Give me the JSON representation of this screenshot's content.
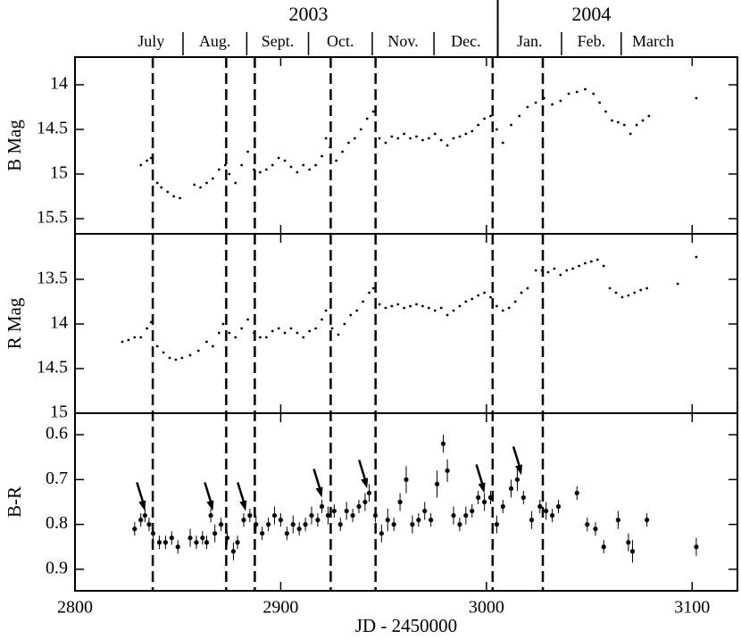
{
  "chart_data": [
    {
      "type": "scatter",
      "y_label": "B Mag",
      "xlim": [
        2800,
        3122
      ],
      "ylim": [
        15.67,
        13.69
      ],
      "yticks": [
        14,
        14.5,
        15,
        15.5
      ],
      "months": [
        "July",
        "Aug.",
        "Sept.",
        "Oct.",
        "Nov.",
        "Dec.",
        "Jan.",
        "Feb.",
        "March"
      ],
      "month_starts": [
        2821.5,
        2852.5,
        2883.5,
        2913.5,
        2944.5,
        2974.5,
        3005.5,
        3036.5,
        3065.5,
        3096.5
      ],
      "years": [
        "2003",
        "2004"
      ],
      "year_spans": [
        2821.5,
        3005.5,
        3096.5
      ],
      "vlines": [
        2837.8,
        2873.5,
        2887.4,
        2924.3,
        2946.1,
        3003.0,
        3027.4
      ],
      "x": [
        2832,
        2835,
        2837,
        2840,
        2842,
        2845,
        2848,
        2851,
        2858,
        2861,
        2864,
        2867,
        2870,
        2873,
        2875,
        2878,
        2881,
        2884,
        2887,
        2890,
        2893,
        2896,
        2899,
        2902,
        2905,
        2908,
        2911,
        2914,
        2917,
        2920,
        2922,
        2924,
        2927,
        2930,
        2933,
        2936,
        2939,
        2942,
        2945,
        2948,
        2951,
        2954,
        2957,
        2960,
        2963,
        2966,
        2969,
        2972,
        2975,
        2978,
        2981,
        2984,
        2987,
        2990,
        2993,
        2996,
        2999,
        3002,
        3005,
        3008,
        3012,
        3016,
        3020,
        3024,
        3028,
        3032,
        3036,
        3040,
        3044,
        3048,
        3052,
        3055,
        3058,
        3061,
        3064,
        3067,
        3070,
        3073,
        3076,
        3079,
        3102
      ],
      "values": [
        14.9,
        14.85,
        14.82,
        15.1,
        15.15,
        15.2,
        15.25,
        15.27,
        15.12,
        15.15,
        15.1,
        15.05,
        14.95,
        14.9,
        15.0,
        15.1,
        14.9,
        14.75,
        14.95,
        14.98,
        14.95,
        14.9,
        14.82,
        14.85,
        14.92,
        14.98,
        14.9,
        14.95,
        14.9,
        14.8,
        14.6,
        14.7,
        14.85,
        14.75,
        14.65,
        14.6,
        14.5,
        14.38,
        14.3,
        14.6,
        14.65,
        14.58,
        14.6,
        14.55,
        14.6,
        14.58,
        14.62,
        14.6,
        14.55,
        14.62,
        14.68,
        14.6,
        14.58,
        14.55,
        14.52,
        14.45,
        14.38,
        14.35,
        14.5,
        14.65,
        14.45,
        14.35,
        14.25,
        14.2,
        14.15,
        14.22,
        14.18,
        14.1,
        14.08,
        14.05,
        14.1,
        14.2,
        14.3,
        14.4,
        14.42,
        14.45,
        14.55,
        14.45,
        14.4,
        14.35,
        14.15
      ]
    },
    {
      "type": "scatter",
      "y_label": "R Mag",
      "xlim": [
        2800,
        3122
      ],
      "ylim": [
        15,
        12.99
      ],
      "yticks": [
        13.5,
        14,
        14.5,
        15
      ],
      "x": [
        2823,
        2826,
        2829,
        2832,
        2835,
        2837,
        2840,
        2843,
        2846,
        2849,
        2852,
        2856,
        2860,
        2864,
        2867,
        2870,
        2872,
        2875,
        2878,
        2881,
        2884,
        2887,
        2890,
        2893,
        2896,
        2899,
        2902,
        2905,
        2908,
        2911,
        2914,
        2917,
        2920,
        2922,
        2925,
        2928,
        2931,
        2934,
        2937,
        2940,
        2943,
        2945,
        2948,
        2951,
        2954,
        2957,
        2960,
        2963,
        2966,
        2969,
        2972,
        2975,
        2978,
        2981,
        2984,
        2987,
        2990,
        2993,
        2996,
        2999,
        3002,
        3005,
        3008,
        3011,
        3014,
        3017,
        3020,
        3024,
        3027,
        3030,
        3033,
        3036,
        3039,
        3042,
        3045,
        3048,
        3051,
        3054,
        3057,
        3060,
        3063,
        3066,
        3069,
        3072,
        3075,
        3078,
        3093,
        3102
      ],
      "values": [
        14.2,
        14.18,
        14.15,
        14.15,
        14.05,
        13.98,
        14.25,
        14.32,
        14.38,
        14.4,
        14.38,
        14.35,
        14.3,
        14.2,
        14.25,
        14.1,
        14.0,
        14.1,
        14.15,
        14.05,
        13.95,
        14.1,
        14.15,
        14.15,
        14.08,
        14.05,
        14.1,
        14.05,
        14.1,
        14.15,
        14.08,
        14.05,
        13.95,
        13.85,
        14.05,
        14.12,
        14.0,
        13.9,
        13.85,
        13.75,
        13.65,
        13.6,
        13.78,
        13.82,
        13.8,
        13.78,
        13.82,
        13.8,
        13.78,
        13.8,
        13.82,
        13.85,
        13.82,
        13.9,
        13.85,
        13.8,
        13.75,
        13.72,
        13.68,
        13.65,
        13.7,
        13.8,
        13.85,
        13.82,
        13.75,
        13.65,
        13.6,
        13.4,
        13.4,
        13.42,
        13.38,
        13.45,
        13.4,
        13.38,
        13.35,
        13.32,
        13.3,
        13.28,
        13.35,
        13.6,
        13.65,
        13.7,
        13.68,
        13.65,
        13.62,
        13.6,
        13.55,
        13.25
      ]
    },
    {
      "type": "errorbar",
      "y_label": "B-R",
      "x_label": "JD - 2450000",
      "xlim": [
        2800,
        3122
      ],
      "xticks": [
        2800,
        2900,
        3000,
        3100
      ],
      "ylim": [
        0.948,
        0.552
      ],
      "yticks": [
        0.6,
        0.7,
        0.8,
        0.9
      ],
      "x": [
        2829,
        2832,
        2834,
        2836,
        2838,
        2841,
        2844,
        2847,
        2850,
        2856,
        2859,
        2862,
        2864,
        2866,
        2868,
        2871,
        2874,
        2877,
        2879,
        2882,
        2885,
        2888,
        2891,
        2894,
        2897,
        2900,
        2903,
        2906,
        2909,
        2912,
        2915,
        2918,
        2920,
        2923,
        2926,
        2929,
        2932,
        2935,
        2938,
        2941,
        2943,
        2946,
        2949,
        2952,
        2955,
        2958,
        2961,
        2964,
        2967,
        2970,
        2973,
        2976,
        2979,
        2981,
        2984,
        2987,
        2990,
        2993,
        2996,
        2999,
        3002,
        3005,
        3008,
        3012,
        3015,
        3018,
        3022,
        3026,
        3029,
        3032,
        3035,
        3044,
        3049,
        3053,
        3057,
        3064,
        3069,
        3071,
        3078,
        3102
      ],
      "values": [
        0.81,
        0.79,
        0.78,
        0.8,
        0.82,
        0.84,
        0.84,
        0.83,
        0.85,
        0.83,
        0.84,
        0.83,
        0.84,
        0.78,
        0.82,
        0.8,
        0.83,
        0.86,
        0.84,
        0.79,
        0.78,
        0.8,
        0.82,
        0.8,
        0.78,
        0.79,
        0.82,
        0.8,
        0.81,
        0.8,
        0.78,
        0.79,
        0.76,
        0.78,
        0.77,
        0.8,
        0.77,
        0.78,
        0.76,
        0.75,
        0.73,
        0.78,
        0.82,
        0.79,
        0.8,
        0.75,
        0.7,
        0.8,
        0.79,
        0.77,
        0.79,
        0.71,
        0.62,
        0.68,
        0.78,
        0.8,
        0.78,
        0.77,
        0.74,
        0.75,
        0.74,
        0.8,
        0.76,
        0.72,
        0.7,
        0.74,
        0.79,
        0.76,
        0.77,
        0.78,
        0.76,
        0.73,
        0.8,
        0.81,
        0.85,
        0.79,
        0.84,
        0.86,
        0.79,
        0.85
      ],
      "errors": [
        0.015,
        0.015,
        0.015,
        0.015,
        0.02,
        0.015,
        0.015,
        0.015,
        0.015,
        0.02,
        0.015,
        0.015,
        0.015,
        0.015,
        0.02,
        0.015,
        0.015,
        0.02,
        0.015,
        0.015,
        0.015,
        0.02,
        0.015,
        0.015,
        0.02,
        0.015,
        0.015,
        0.02,
        0.015,
        0.015,
        0.02,
        0.015,
        0.015,
        0.02,
        0.015,
        0.015,
        0.02,
        0.015,
        0.015,
        0.02,
        0.02,
        0.015,
        0.02,
        0.025,
        0.015,
        0.02,
        0.03,
        0.02,
        0.015,
        0.02,
        0.015,
        0.03,
        0.02,
        0.025,
        0.02,
        0.015,
        0.02,
        0.015,
        0.015,
        0.02,
        0.015,
        0.02,
        0.015,
        0.02,
        0.025,
        0.015,
        0.02,
        0.015,
        0.02,
        0.015,
        0.015,
        0.015,
        0.015,
        0.015,
        0.015,
        0.02,
        0.02,
        0.025,
        0.015,
        0.02
      ],
      "arrows": [
        {
          "x": 2834,
          "y": 0.77
        },
        {
          "x": 2867,
          "y": 0.77
        },
        {
          "x": 2883,
          "y": 0.77
        },
        {
          "x": 2920,
          "y": 0.74
        },
        {
          "x": 2942,
          "y": 0.72
        },
        {
          "x": 2999,
          "y": 0.73
        },
        {
          "x": 3017,
          "y": 0.69
        }
      ]
    }
  ]
}
